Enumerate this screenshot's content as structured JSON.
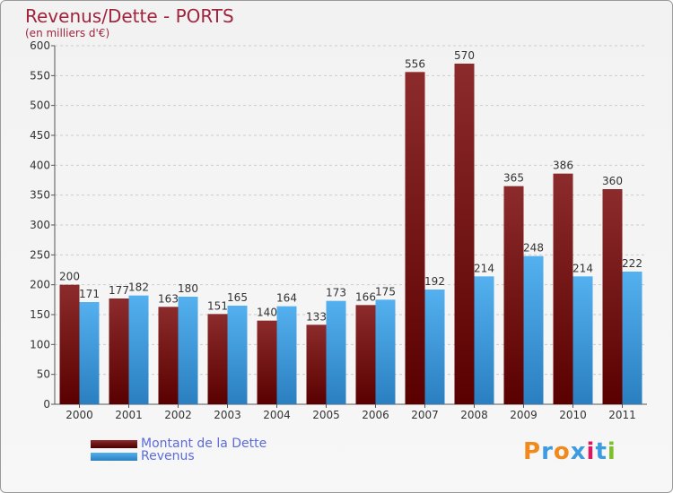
{
  "header": {
    "title": "Revenus/Dette - PORTS",
    "subtitle": "(en milliers d'€)"
  },
  "colors": {
    "dette": "#7a1a1a",
    "revenus": "#3d9be0",
    "grid": "#cccccc",
    "title": "#a0243c",
    "legend_text": "#5b6bd9"
  },
  "legend": {
    "dette_label": "Montant de la Dette",
    "revenus_label": "Revenus"
  },
  "logo": {
    "text": "Proxiti"
  },
  "chart_data": {
    "type": "bar",
    "categories": [
      "2000",
      "2001",
      "2002",
      "2003",
      "2004",
      "2005",
      "2006",
      "2007",
      "2008",
      "2009",
      "2010",
      "2011"
    ],
    "series": [
      {
        "name": "Montant de la Dette",
        "values": [
          200,
          177,
          163,
          151,
          140,
          133,
          166,
          556,
          570,
          365,
          386,
          360
        ]
      },
      {
        "name": "Revenus",
        "values": [
          171,
          182,
          180,
          165,
          164,
          173,
          175,
          192,
          214,
          248,
          214,
          222
        ]
      }
    ],
    "ylim": [
      0,
      600
    ],
    "yticks": [
      0,
      50,
      100,
      150,
      200,
      250,
      300,
      350,
      400,
      450,
      500,
      550,
      600
    ],
    "grid": "horizontal dashed",
    "legend_position": "bottom-left"
  }
}
